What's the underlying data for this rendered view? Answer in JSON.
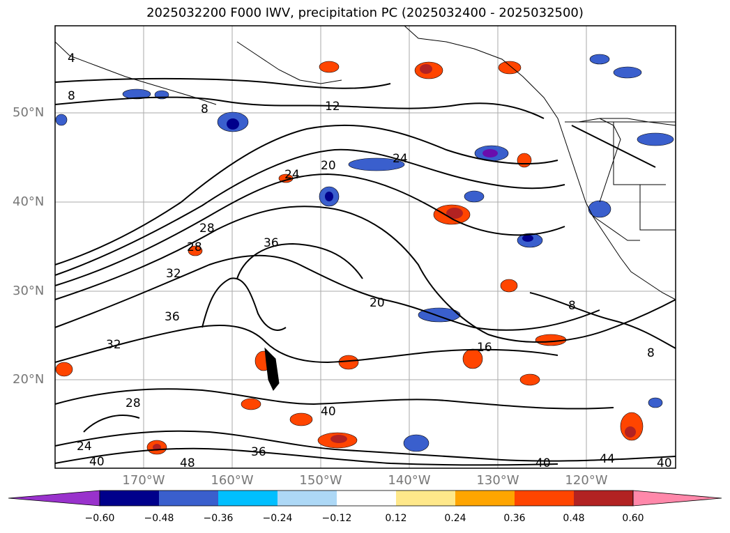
{
  "title": "2025032200 F000 IWV, precipitation PC (2025032400 - 2025032500)",
  "lat_labels": [
    "50°N",
    "40°N",
    "30°N",
    "20°N"
  ],
  "lon_labels": [
    "170°W",
    "160°W",
    "150°W",
    "140°W",
    "130°W",
    "120°W"
  ],
  "contour_labels": [
    "4",
    "8",
    "8",
    "12",
    "20",
    "24",
    "24",
    "28",
    "28",
    "32",
    "36",
    "36",
    "40",
    "20",
    "16",
    "8",
    "8",
    "40",
    "44",
    "48",
    "36",
    "32",
    "24",
    "28",
    "40",
    "40"
  ],
  "colorbar": {
    "ticks": [
      "−0.60",
      "−0.48",
      "−0.36",
      "−0.24",
      "−0.12",
      "0.12",
      "0.24",
      "0.36",
      "0.48",
      "0.60"
    ],
    "colors": [
      "#9932cc",
      "#00008b",
      "#3a5fcd",
      "#00bfff",
      "#add8f6",
      "#ffffff",
      "#ffe88a",
      "#ffa500",
      "#ff4500",
      "#b22222",
      "#ff88aa"
    ]
  }
}
